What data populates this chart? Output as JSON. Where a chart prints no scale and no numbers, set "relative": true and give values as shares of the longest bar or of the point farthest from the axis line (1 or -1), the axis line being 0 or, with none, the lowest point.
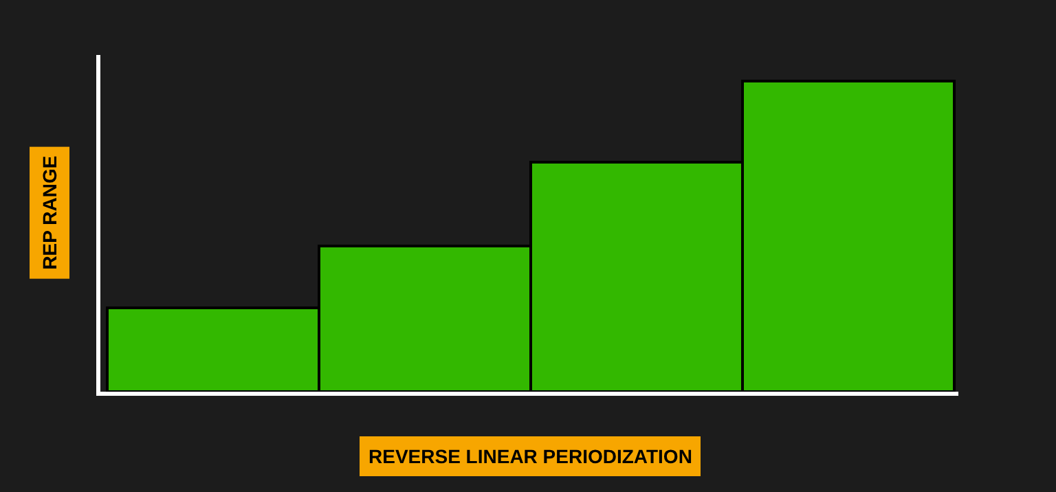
{
  "chart_data": {
    "type": "bar",
    "relative": true,
    "xlabel": "REVERSE LINEAR PERIODIZATION",
    "ylabel": "REP RANGE",
    "categories": [
      null,
      null,
      null,
      null
    ],
    "values": [
      0.27,
      0.47,
      0.74,
      1
    ],
    "color": "#33b800",
    "grid": false,
    "legend": false
  }
}
